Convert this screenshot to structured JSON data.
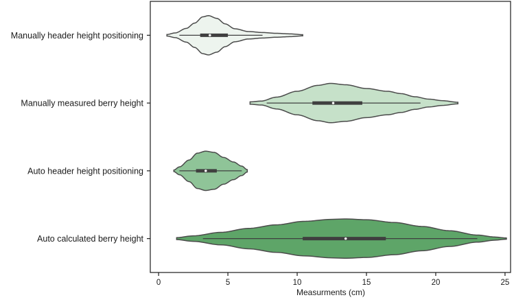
{
  "chart_data": {
    "type": "violin",
    "orientation": "horizontal",
    "xlabel": "Measurments (cm)",
    "ylabel": "",
    "xlim": [
      -0.6,
      25.4
    ],
    "xticks": [
      0,
      5,
      10,
      15,
      20,
      25
    ],
    "grid": false,
    "series": [
      {
        "name": "Manually header height positioning",
        "color": "#edf4ee",
        "kde_range": [
          0.6,
          10.4
        ],
        "whisker": [
          1.5,
          7.5
        ],
        "box": [
          3.0,
          5.0
        ],
        "median": 3.7,
        "profile": [
          [
            0.6,
            0.04
          ],
          [
            1.2,
            0.12
          ],
          [
            2.0,
            0.35
          ],
          [
            2.6,
            0.62
          ],
          [
            3.2,
            0.94
          ],
          [
            3.6,
            1.0
          ],
          [
            4.2,
            0.86
          ],
          [
            4.8,
            0.58
          ],
          [
            5.5,
            0.33
          ],
          [
            6.5,
            0.19
          ],
          [
            7.5,
            0.14
          ],
          [
            8.5,
            0.1
          ],
          [
            9.5,
            0.07
          ],
          [
            10.4,
            0.03
          ]
        ]
      },
      {
        "name": "Manually measured berry height",
        "color": "#c6e1c9",
        "kde_range": [
          6.6,
          21.6
        ],
        "whisker": [
          7.8,
          18.9
        ],
        "box": [
          11.1,
          14.7
        ],
        "median": 12.6,
        "profile": [
          [
            6.6,
            0.06
          ],
          [
            7.4,
            0.1
          ],
          [
            8.5,
            0.3
          ],
          [
            10.0,
            0.6
          ],
          [
            11.5,
            0.9
          ],
          [
            12.4,
            1.0
          ],
          [
            13.5,
            0.93
          ],
          [
            15.0,
            0.74
          ],
          [
            16.5,
            0.6
          ],
          [
            17.5,
            0.48
          ],
          [
            18.5,
            0.32
          ],
          [
            19.5,
            0.2
          ],
          [
            20.5,
            0.12
          ],
          [
            21.6,
            0.04
          ]
        ]
      },
      {
        "name": "Auto header height positioning",
        "color": "#8fc498",
        "kde_range": [
          1.1,
          6.4
        ],
        "whisker": [
          1.5,
          6.0
        ],
        "box": [
          2.7,
          4.2
        ],
        "median": 3.4,
        "profile": [
          [
            1.1,
            0.04
          ],
          [
            1.5,
            0.2
          ],
          [
            2.2,
            0.55
          ],
          [
            2.8,
            0.9
          ],
          [
            3.4,
            1.0
          ],
          [
            4.0,
            0.94
          ],
          [
            4.7,
            0.68
          ],
          [
            5.4,
            0.45
          ],
          [
            6.0,
            0.24
          ],
          [
            6.4,
            0.06
          ]
        ]
      },
      {
        "name": "Auto calculated berry height",
        "color": "#5ea568",
        "kde_range": [
          1.3,
          25.1
        ],
        "whisker": [
          3.2,
          23.0
        ],
        "box": [
          10.4,
          16.4
        ],
        "median": 13.5,
        "profile": [
          [
            1.3,
            0.05
          ],
          [
            2.5,
            0.14
          ],
          [
            4.5,
            0.32
          ],
          [
            6.5,
            0.52
          ],
          [
            8.5,
            0.7
          ],
          [
            10.5,
            0.88
          ],
          [
            12.5,
            0.98
          ],
          [
            13.5,
            1.0
          ],
          [
            15.0,
            0.96
          ],
          [
            17.0,
            0.82
          ],
          [
            19.0,
            0.62
          ],
          [
            21.0,
            0.4
          ],
          [
            23.0,
            0.18
          ],
          [
            24.3,
            0.08
          ],
          [
            25.1,
            0.03
          ]
        ]
      }
    ]
  }
}
